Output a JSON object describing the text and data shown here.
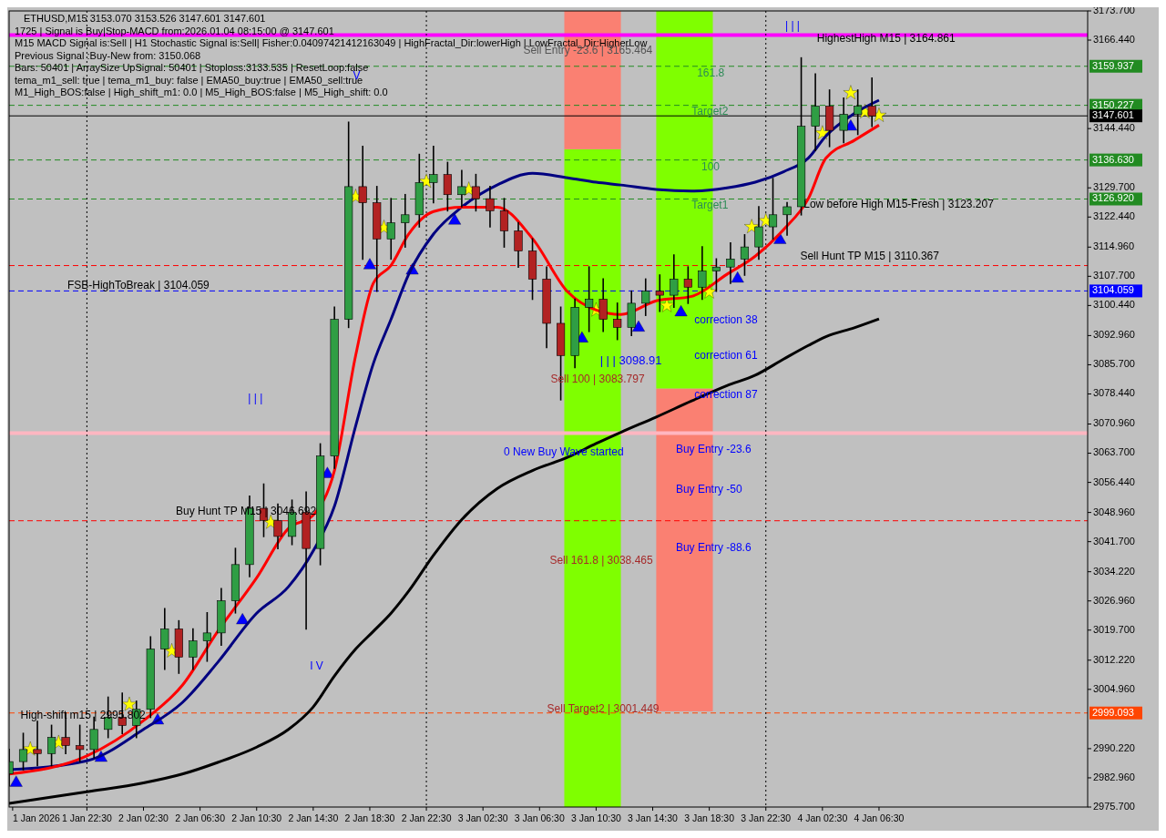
{
  "chart_data": {
    "type": "candlestick",
    "title": "ETHUSD,M15  3153.070 3153.526 3147.601 3147.601",
    "xlim": [
      "2026-01-01T17:00",
      "2026-01-04T21:15"
    ],
    "xticks": [
      {
        "value": "2026-01-01T17:15",
        "label": "1 Jan 2026"
      },
      {
        "value": "2026-01-01T22:30",
        "label": "1 Jan 22:30"
      },
      {
        "value": "2026-01-02T02:30",
        "label": "2 Jan 02:30"
      },
      {
        "value": "2026-01-02T06:30",
        "label": "2 Jan 06:30"
      },
      {
        "value": "2026-01-02T10:30",
        "label": "2 Jan 10:30"
      },
      {
        "value": "2026-01-02T14:30",
        "label": "2 Jan 14:30"
      },
      {
        "value": "2026-01-02T18:30",
        "label": "2 Jan 18:30"
      },
      {
        "value": "2026-01-02T22:30",
        "label": "2 Jan 22:30"
      },
      {
        "value": "2026-01-03T02:30",
        "label": "3 Jan 02:30"
      },
      {
        "value": "2026-01-03T06:30",
        "label": "3 Jan 06:30"
      },
      {
        "value": "2026-01-03T10:30",
        "label": "3 Jan 10:30"
      },
      {
        "value": "2026-01-03T14:30",
        "label": "3 Jan 14:30"
      },
      {
        "value": "2026-01-03T18:30",
        "label": "3 Jan 18:30"
      },
      {
        "value": "2026-01-03T22:30",
        "label": "3 Jan 22:30"
      },
      {
        "value": "2026-01-04T02:30",
        "label": "4 Jan 02:30"
      },
      {
        "value": "2026-01-04T06:30",
        "label": "4 Jan 06:30"
      }
    ],
    "ylim": [
      2975.7,
      3173.7
    ],
    "yticks": [
      {
        "value": 3173.7,
        "label": "3173.700"
      },
      {
        "value": 3166.44,
        "label": "3166.440"
      },
      {
        "value": 3144.44,
        "label": "3144.440"
      },
      {
        "value": 3129.7,
        "label": "3129.700"
      },
      {
        "value": 3122.44,
        "label": "3122.440"
      },
      {
        "value": 3114.96,
        "label": "3114.960"
      },
      {
        "value": 3107.7,
        "label": "3107.700"
      },
      {
        "value": 3100.44,
        "label": "3100.440"
      },
      {
        "value": 3092.96,
        "label": "3092.960"
      },
      {
        "value": 3085.7,
        "label": "3085.700"
      },
      {
        "value": 3078.44,
        "label": "3078.440"
      },
      {
        "value": 3070.96,
        "label": "3070.960"
      },
      {
        "value": 3063.7,
        "label": "3063.700"
      },
      {
        "value": 3056.44,
        "label": "3056.440"
      },
      {
        "value": 3048.96,
        "label": "3048.960"
      },
      {
        "value": 3041.7,
        "label": "3041.700"
      },
      {
        "value": 3034.22,
        "label": "3034.220"
      },
      {
        "value": 3026.96,
        "label": "3026.960"
      },
      {
        "value": 3019.7,
        "label": "3019.700"
      },
      {
        "value": 3012.22,
        "label": "3012.220"
      },
      {
        "value": 3004.96,
        "label": "3004.960"
      },
      {
        "value": 2990.22,
        "label": "2990.220"
      },
      {
        "value": 2982.96,
        "label": "2982.960"
      },
      {
        "value": 2975.7,
        "label": "2975.700"
      }
    ],
    "ref_lines": [
      {
        "axis": "y",
        "value": 3167.7,
        "label": null,
        "color": "#ff00ff",
        "line_style": "solid"
      },
      {
        "axis": "y",
        "value": 3159.937,
        "label": "3159.937",
        "color": "#228b22",
        "line_style": "dashed"
      },
      {
        "axis": "y",
        "value": 3150.227,
        "label": "3150.227",
        "color": "#228b22",
        "line_style": "dashed"
      },
      {
        "axis": "y",
        "value": 3147.601,
        "label": "3147.601",
        "color": "#000000",
        "line_style": "solid"
      },
      {
        "axis": "y",
        "value": 3136.63,
        "label": "3136.630",
        "color": "#228b22",
        "line_style": "dashed"
      },
      {
        "axis": "y",
        "value": 3126.92,
        "label": "3126.920",
        "color": "#228b22",
        "line_style": "dashed"
      },
      {
        "axis": "y",
        "value": 3110.367,
        "label": null,
        "color": "#ff0000",
        "line_style": "dashed"
      },
      {
        "axis": "y",
        "value": 3104.059,
        "label": "3104.059",
        "color": "#0000ff",
        "line_style": "dashed"
      },
      {
        "axis": "y",
        "value": 3068.7,
        "label": null,
        "color": "#ffb6c1",
        "line_style": "solid"
      },
      {
        "axis": "y",
        "value": 3046.9,
        "label": null,
        "color": "#ff0000",
        "line_style": "dashed"
      },
      {
        "axis": "y",
        "value": 2999.093,
        "label": "2999.093",
        "color": "#ff4500",
        "line_style": "dashed"
      },
      {
        "axis": "x",
        "value": "2026-01-01T22:30",
        "label": null,
        "color": "#000000",
        "line_style": "dotted"
      },
      {
        "axis": "x",
        "value": "2026-01-02T22:30",
        "label": null,
        "color": "#000000",
        "line_style": "dotted"
      },
      {
        "axis": "x",
        "value": "2026-01-03T22:30",
        "label": null,
        "color": "#000000",
        "line_style": "dotted"
      }
    ],
    "annotations": [
      "1725 | Signal is Buy|Stop-MACD from:2026.01.04 08:15:00 @ 3147.601",
      "M15 MACD Signal is:Sell | H1 Stochastic Signal is:Sell| Fisher:0.04097421412163049 | HighFractal_Dir:lowerHigh | LowFractal_Dir:HigherLow",
      "Previous Signal :Buy-New from: 3150.068",
      "Bars: 50401 | ArraySize UpSignal: 50401 | Stoploss:3133.535 | ResetLoop:false",
      "tema_m1_sell: true | tema_m1_buy: false | EMA50_buy:true | EMA50_sell:true",
      "M1_High_BOS:false | High_shift_m1: 0.0 | M5_High_BOS:false | M5_High_shift: 0.0",
      "Sell Entry -23.6 | 3165.464",
      "161.8",
      "Target2",
      "100",
      "Target1",
      "HighestHigh   M15 | 3164.861",
      "Low before High   M15-Fresh | 3123.207",
      "Sell Hunt TP M15 | 3110.367",
      "FSB-HighToBreak | 3104.059",
      "correction 38",
      "correction 61",
      "correction 87",
      "| | | 3098.91",
      "Sell 100 | 3083.797",
      "0 New Buy Wave started",
      "Buy Entry -23.6",
      "Buy Entry -50",
      "Buy Entry -88.6",
      "Sell 161.8 | 3038.465",
      "Sell Target2 | 3001.449",
      "Buy Hunt TP M15 | 3046.692",
      "High-shift m15 | 2995.802",
      "| | |",
      "I V",
      "| | |",
      "V"
    ],
    "series": [
      {
        "type": "bar",
        "x": [
          "2026-01-03T10:15",
          "2026-01-03T16:45"
        ],
        "base": [
          2975.7,
          2999.5
        ],
        "values": [
          163.6,
          80.3
        ],
        "colors": [
          "#7fff00",
          "#fa8072"
        ]
      },
      {
        "type": "bar",
        "x": [
          "2026-01-03T10:15",
          "2026-01-03T16:45"
        ],
        "base": [
          3139.3,
          3079.8
        ],
        "values": [
          34.4,
          93.9
        ],
        "colors": [
          "#fa8072",
          "#7fff00"
        ]
      },
      {
        "type": "line",
        "color": "#000000",
        "x": [
          "2026-01-01T17:00",
          "2026-01-01T22:30",
          "2026-01-02T02:30",
          "2026-01-02T05:15",
          "2026-01-02T07:45",
          "2026-01-02T10:30",
          "2026-01-02T12:45",
          "2026-01-02T14:30",
          "2026-01-02T16:00",
          "2026-01-02T17:30",
          "2026-01-02T18:45",
          "2026-01-02T20:00",
          "2026-01-02T21:15",
          "2026-01-02T23:00",
          "2026-01-03T01:00",
          "2026-01-03T03:30",
          "2026-01-03T06:00",
          "2026-01-03T08:30",
          "2026-01-03T10:30",
          "2026-01-03T12:15",
          "2026-01-03T14:45",
          "2026-01-03T17:15",
          "2026-01-03T19:45",
          "2026-01-03T21:45",
          "2026-01-03T23:45",
          "2026-01-04T01:30",
          "2026-01-04T02:45",
          "2026-01-04T04:45",
          "2026-01-04T06:30"
        ],
        "values": [
          2976.6,
          2979.5,
          2981.7,
          2983.9,
          2986.8,
          2990.6,
          2995,
          3000.6,
          3008.3,
          3015,
          3019.4,
          3023.9,
          3029.4,
          3038.3,
          3047.2,
          3054.9,
          3059.4,
          3062.7,
          3066.1,
          3068.9,
          3072.7,
          3076.7,
          3080.5,
          3083.1,
          3087.1,
          3090.5,
          3092.7,
          3094.9,
          3097.1
        ]
      },
      {
        "type": "line",
        "color": "#000080",
        "x": [
          "2026-01-01T17:00",
          "2026-01-01T22:30",
          "2026-01-02T02:30",
          "2026-01-02T05:15",
          "2026-01-02T07:45",
          "2026-01-02T10:30",
          "2026-01-02T12:45",
          "2026-01-02T14:30",
          "2026-01-02T16:00",
          "2026-01-02T17:30",
          "2026-01-02T18:45",
          "2026-01-02T20:00",
          "2026-01-02T21:15",
          "2026-01-02T23:00",
          "2026-01-03T01:00",
          "2026-01-03T03:30",
          "2026-01-03T06:00",
          "2026-01-03T08:30",
          "2026-01-03T10:30",
          "2026-01-03T12:15",
          "2026-01-03T14:45",
          "2026-01-03T17:15",
          "2026-01-03T19:45",
          "2026-01-03T21:45",
          "2026-01-03T23:45",
          "2026-01-04T01:30",
          "2026-01-04T02:45",
          "2026-01-04T04:45",
          "2026-01-04T06:30"
        ],
        "values": [
          2985,
          2987.2,
          2995,
          3001.7,
          3011.7,
          3023.9,
          3030.5,
          3039.4,
          3050.5,
          3070.5,
          3086,
          3097,
          3108.2,
          3118.2,
          3124.9,
          3130.4,
          3133.3,
          3132.2,
          3131.1,
          3130.4,
          3129.3,
          3128.9,
          3129.7,
          3131.1,
          3133.7,
          3137.1,
          3142.6,
          3148.2,
          3151.5
        ]
      },
      {
        "type": "line",
        "color": "#ff0000",
        "x": [
          "2026-01-01T17:00",
          "2026-01-01T22:30",
          "2026-01-02T02:30",
          "2026-01-02T05:15",
          "2026-01-02T07:45",
          "2026-01-02T10:30",
          "2026-01-02T12:45",
          "2026-01-02T14:30",
          "2026-01-02T16:00",
          "2026-01-02T17:30",
          "2026-01-02T18:45",
          "2026-01-02T20:00",
          "2026-01-02T21:15",
          "2026-01-02T23:00",
          "2026-01-03T01:00",
          "2026-01-03T03:30",
          "2026-01-03T06:00",
          "2026-01-03T08:30",
          "2026-01-03T10:30",
          "2026-01-03T12:15",
          "2026-01-03T14:45",
          "2026-01-03T17:15",
          "2026-01-03T19:45",
          "2026-01-03T21:45",
          "2026-01-03T23:45",
          "2026-01-04T01:30",
          "2026-01-04T02:45",
          "2026-01-04T04:45",
          "2026-01-04T06:30"
        ],
        "values": [
          2983.9,
          2988.4,
          2997.2,
          3006,
          3019.4,
          3032.7,
          3045,
          3048.3,
          3059.4,
          3088,
          3106,
          3110.4,
          3118.2,
          3123.8,
          3124.9,
          3124.9,
          3117.1,
          3103.8,
          3099.3,
          3098.2,
          3101.6,
          3102.7,
          3108.2,
          3112.7,
          3119.3,
          3127,
          3137.1,
          3141.5,
          3145.3
        ]
      },
      {
        "x": [
          "2026-01-01T17:00",
          "2026-01-01T18:00",
          "2026-01-01T19:00",
          "2026-01-01T20:00",
          "2026-01-01T21:00",
          "2026-01-01T22:00",
          "2026-01-01T23:00",
          "2026-01-02T00:00",
          "2026-01-02T01:00",
          "2026-01-02T02:00",
          "2026-01-02T03:00",
          "2026-01-02T04:00",
          "2026-01-02T05:00",
          "2026-01-02T06:00",
          "2026-01-02T07:00",
          "2026-01-02T08:00",
          "2026-01-02T09:00",
          "2026-01-02T10:00",
          "2026-01-02T11:00",
          "2026-01-02T12:00",
          "2026-01-02T13:00",
          "2026-01-02T14:00",
          "2026-01-02T15:00",
          "2026-01-02T16:00",
          "2026-01-02T17:00",
          "2026-01-02T18:00",
          "2026-01-02T19:00",
          "2026-01-02T20:00",
          "2026-01-02T21:00",
          "2026-01-02T22:00",
          "2026-01-02T23:00",
          "2026-01-03T00:00",
          "2026-01-03T01:00",
          "2026-01-03T02:00",
          "2026-01-03T03:00",
          "2026-01-03T04:00",
          "2026-01-03T05:00",
          "2026-01-03T06:00",
          "2026-01-03T07:00",
          "2026-01-03T08:00",
          "2026-01-03T09:00",
          "2026-01-03T10:00",
          "2026-01-03T11:00",
          "2026-01-03T12:00",
          "2026-01-03T13:00",
          "2026-01-03T14:00",
          "2026-01-03T15:00",
          "2026-01-03T16:00",
          "2026-01-03T17:00",
          "2026-01-03T18:00",
          "2026-01-03T19:00",
          "2026-01-03T20:00",
          "2026-01-03T21:00",
          "2026-01-03T22:00",
          "2026-01-03T23:00",
          "2026-01-04T00:00",
          "2026-01-04T01:00",
          "2026-01-04T02:00",
          "2026-01-04T03:00",
          "2026-01-04T04:00",
          "2026-01-04T05:00",
          "2026-01-04T06:00"
        ],
        "ohlc": [
          [
            2984,
            2990,
            2981,
            2987
          ],
          [
            2987,
            2994,
            2985,
            2990
          ],
          [
            2990,
            2997,
            2986,
            2989
          ],
          [
            2989,
            2996,
            2986,
            2993
          ],
          [
            2993,
            2999,
            2989,
            2991
          ],
          [
            2991,
            2996,
            2987,
            2990
          ],
          [
            2990,
            2998,
            2988,
            2995
          ],
          [
            2995,
            3003,
            2993,
            2998
          ],
          [
            2998,
            3004,
            2994,
            2996
          ],
          [
            2996,
            3002,
            2993,
            3000
          ],
          [
            3000,
            3018,
            2998,
            3015
          ],
          [
            3015,
            3025,
            3010,
            3020
          ],
          [
            3020,
            3022,
            3009,
            3013
          ],
          [
            3013,
            3020,
            3010,
            3017
          ],
          [
            3017,
            3024,
            3012,
            3019
          ],
          [
            3019,
            3030,
            3016,
            3027
          ],
          [
            3027,
            3040,
            3024,
            3036
          ],
          [
            3036,
            3053,
            3033,
            3050
          ],
          [
            3050,
            3056,
            3043,
            3047
          ],
          [
            3047,
            3051,
            3040,
            3043
          ],
          [
            3043,
            3052,
            3041,
            3049
          ],
          [
            3049,
            3054,
            3020,
            3040
          ],
          [
            3040,
            3066,
            3036,
            3063
          ],
          [
            3063,
            3100,
            3060,
            3097
          ],
          [
            3097,
            3146,
            3095,
            3130
          ],
          [
            3130,
            3140,
            3112,
            3126
          ],
          [
            3126,
            3130,
            3104,
            3117
          ],
          [
            3117,
            3127,
            3112,
            3121
          ],
          [
            3121,
            3128,
            3115,
            3123
          ],
          [
            3123,
            3138,
            3120,
            3131
          ],
          [
            3131,
            3140,
            3126,
            3133
          ],
          [
            3133,
            3136,
            3124,
            3128
          ],
          [
            3128,
            3134,
            3125,
            3130
          ],
          [
            3130,
            3133,
            3124,
            3127
          ],
          [
            3127,
            3130,
            3120,
            3124
          ],
          [
            3124,
            3127,
            3115,
            3119
          ],
          [
            3119,
            3121,
            3110,
            3114
          ],
          [
            3114,
            3117,
            3102,
            3107
          ],
          [
            3107,
            3110,
            3090,
            3096
          ],
          [
            3096,
            3100,
            3077,
            3088
          ],
          [
            3088,
            3102,
            3085,
            3100
          ],
          [
            3100,
            3110,
            3094,
            3102
          ],
          [
            3102,
            3107,
            3094,
            3097
          ],
          [
            3097,
            3101,
            3092,
            3095
          ],
          [
            3095,
            3104,
            3093,
            3101
          ],
          [
            3101,
            3107,
            3098,
            3104
          ],
          [
            3104,
            3108,
            3099,
            3103
          ],
          [
            3103,
            3113,
            3100,
            3107
          ],
          [
            3107,
            3110,
            3101,
            3105
          ],
          [
            3105,
            3115,
            3102,
            3109
          ],
          [
            3109,
            3112,
            3104,
            3110
          ],
          [
            3110,
            3116,
            3106,
            3112
          ],
          [
            3112,
            3118,
            3108,
            3115
          ],
          [
            3115,
            3125,
            3112,
            3120
          ],
          [
            3120,
            3132,
            3117,
            3123
          ],
          [
            3123,
            3126,
            3118,
            3125
          ],
          [
            3125,
            3162,
            3123,
            3145
          ],
          [
            3145,
            3158,
            3139,
            3150
          ],
          [
            3150,
            3154,
            3140,
            3144
          ],
          [
            3144,
            3152,
            3141,
            3148
          ],
          [
            3148,
            3154,
            3143,
            3150
          ],
          [
            3150,
            3157,
            3145,
            3147.601
          ]
        ],
        "colors": [
          "#2f9e44",
          "#2f9e44",
          "#b22222",
          "#2f9e44",
          "#b22222",
          "#b22222",
          "#2f9e44",
          "#2f9e44",
          "#b22222",
          "#2f9e44",
          "#2f9e44",
          "#2f9e44",
          "#b22222",
          "#2f9e44",
          "#2f9e44",
          "#2f9e44",
          "#2f9e44",
          "#2f9e44",
          "#b22222",
          "#b22222",
          "#2f9e44",
          "#b22222",
          "#2f9e44",
          "#2f9e44",
          "#2f9e44",
          "#b22222",
          "#b22222",
          "#2f9e44",
          "#2f9e44",
          "#2f9e44",
          "#2f9e44",
          "#b22222",
          "#2f9e44",
          "#b22222",
          "#b22222",
          "#b22222",
          "#b22222",
          "#b22222",
          "#b22222",
          "#b22222",
          "#2f9e44",
          "#2f9e44",
          "#b22222",
          "#b22222",
          "#2f9e44",
          "#2f9e44",
          "#b22222",
          "#2f9e44",
          "#b22222",
          "#2f9e44",
          "#2f9e44",
          "#2f9e44",
          "#2f9e44",
          "#2f9e44",
          "#2f9e44",
          "#2f9e44",
          "#2f9e44",
          "#2f9e44",
          "#b22222",
          "#2f9e44",
          "#2f9e44",
          "#b22222"
        ]
      },
      {
        "type": "scatter",
        "marker": "star",
        "color": "#ffff00",
        "x": [
          "2026-01-01T18:30",
          "2026-01-01T20:30",
          "2026-01-02T01:30",
          "2026-01-02T04:30",
          "2026-01-02T11:30",
          "2026-01-02T17:30",
          "2026-01-02T19:30",
          "2026-01-02T22:30",
          "2026-01-03T01:30",
          "2026-01-03T10:30",
          "2026-01-03T15:30",
          "2026-01-03T18:30",
          "2026-01-03T21:30",
          "2026-01-03T22:30",
          "2026-01-04T02:30",
          "2026-01-04T04:30",
          "2026-01-04T05:30",
          "2026-01-04T06:30"
        ],
        "values": [
          2990.1,
          2991.7,
          3001.2,
          3014.5,
          3046.5,
          3127.5,
          3119.8,
          3131.3,
          3129.3,
          3099.3,
          3100.4,
          3103.8,
          3120,
          3121.5,
          3143.3,
          3153.3,
          3148.6,
          3147.7
        ]
      },
      {
        "type": "scatter",
        "marker": "triangle",
        "color": "#0000ff",
        "x": [
          "2026-01-01T17:30",
          "2026-01-01T23:30",
          "2026-01-02T03:30",
          "2026-01-02T09:30",
          "2026-01-02T15:30",
          "2026-01-02T18:30",
          "2026-01-02T21:30",
          "2026-01-03T00:30",
          "2026-01-03T09:30",
          "2026-01-03T13:30",
          "2026-01-03T16:30",
          "2026-01-03T20:30",
          "2026-01-03T23:30",
          "2026-01-04T04:30"
        ],
        "values": [
          2981.7,
          2987.9,
          2997.2,
          3022.1,
          3058.5,
          3110.4,
          3109.1,
          3121.5,
          3092.2,
          3094.9,
          3098.7,
          3107.1,
          3116.7,
          3144.9
        ]
      }
    ]
  }
}
